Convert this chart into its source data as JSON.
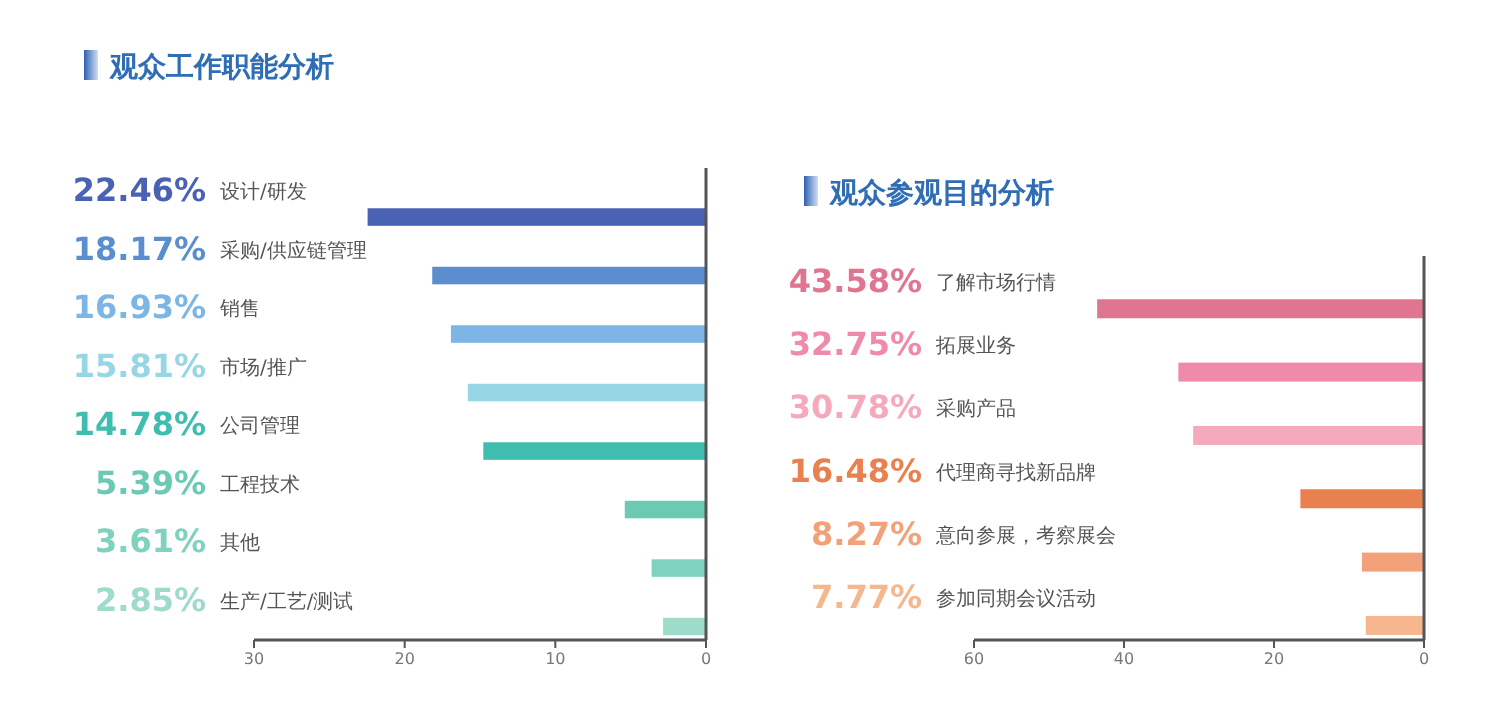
{
  "chart_data": [
    {
      "type": "bar",
      "orientation": "horizontal",
      "title": "观众工作职能分析",
      "categories": [
        "设计/研发",
        "采购/供应链管理",
        "销售",
        "市场/推广",
        "公司管理",
        "工程技术",
        "其他",
        "生产/工艺/测试"
      ],
      "values": [
        22.46,
        18.17,
        16.93,
        15.81,
        14.78,
        5.39,
        3.61,
        2.85
      ],
      "value_labels": [
        "22.46%",
        "18.17%",
        "16.93%",
        "15.81%",
        "14.78%",
        "5.39%",
        "3.61%",
        "2.85%"
      ],
      "colors": [
        "#4a62b3",
        "#5a8ecf",
        "#7db6e5",
        "#97d7e5",
        "#3fbdb1",
        "#6bc9b4",
        "#7fd2bd",
        "#9edbca"
      ],
      "xlim": [
        30,
        0
      ],
      "xticks": [
        30,
        20,
        10,
        0
      ]
    },
    {
      "type": "bar",
      "orientation": "horizontal",
      "title": "观众参观目的分析",
      "categories": [
        "了解市场行情",
        "拓展业务",
        "采购产品",
        "代理商寻找新品牌",
        "意向参展，考察展会",
        "参加同期会议活动"
      ],
      "values": [
        43.58,
        32.75,
        30.78,
        16.48,
        8.27,
        7.77
      ],
      "value_labels": [
        "43.58%",
        "32.75%",
        "30.78%",
        "16.48%",
        "8.27%",
        "7.77%"
      ],
      "colors": [
        "#e0758f",
        "#ef8aa9",
        "#f4aabb",
        "#e9804f",
        "#f3a178",
        "#f6b68e"
      ],
      "xlim": [
        60,
        0
      ],
      "xticks": [
        60,
        40,
        20,
        0
      ]
    }
  ]
}
